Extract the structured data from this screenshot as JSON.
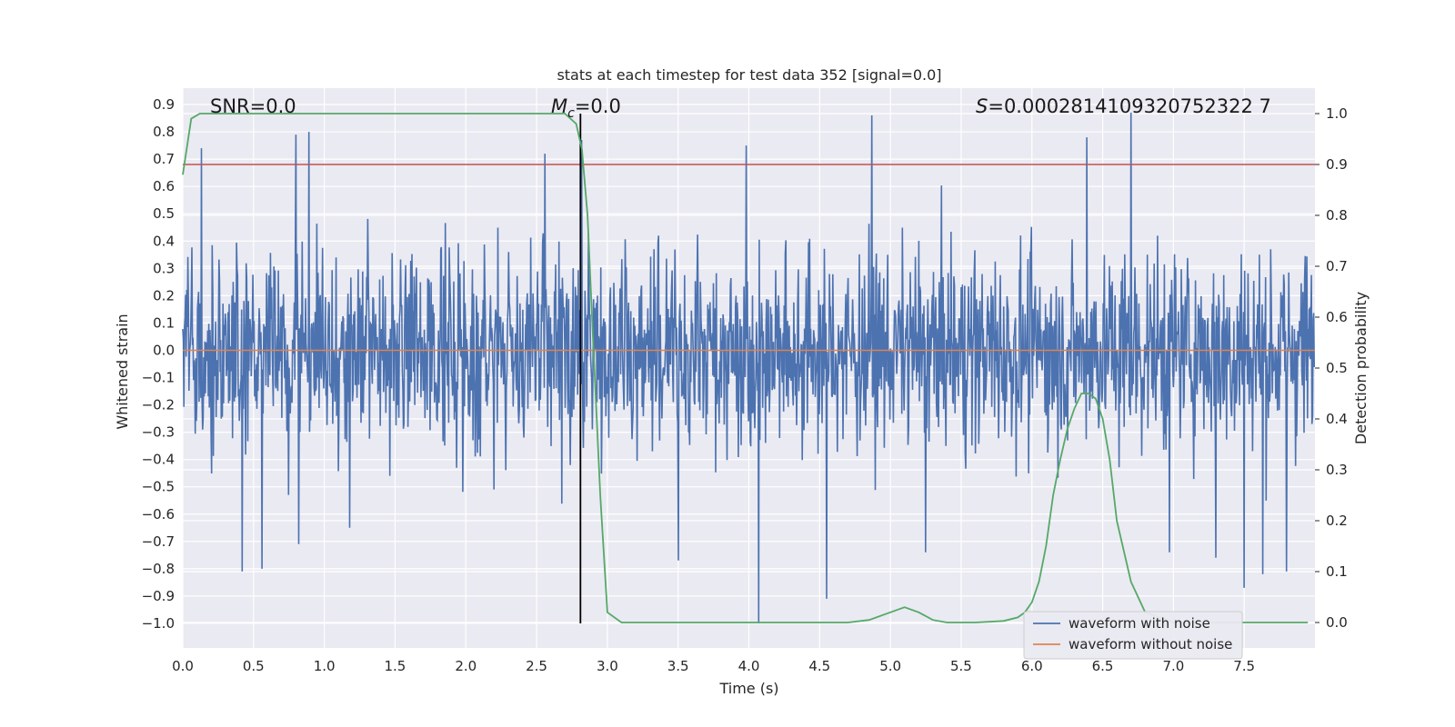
{
  "chart_data": {
    "type": "line",
    "title": "stats at each timestep for test data 352 [signal=0.0]",
    "xlabel": "Time (s)",
    "ylabel_left": "Whitened strain",
    "ylabel_right": "Detection probability",
    "xlim": [
      0.0,
      8.0
    ],
    "ylim_left": [
      -1.09,
      0.96
    ],
    "ylim_right": [
      -0.05,
      1.05
    ],
    "x_ticks": [
      "0.0",
      "0.5",
      "1.0",
      "1.5",
      "2.0",
      "2.5",
      "3.0",
      "3.5",
      "4.0",
      "4.5",
      "5.0",
      "5.5",
      "6.0",
      "6.5",
      "7.0",
      "7.5"
    ],
    "y_ticks_left": [
      "0.9",
      "0.8",
      "0.7",
      "0.6",
      "0.5",
      "0.4",
      "0.3",
      "0.2",
      "0.1",
      "0.0",
      "−0.1",
      "−0.2",
      "−0.3",
      "−0.4",
      "−0.5",
      "−0.6",
      "−0.7",
      "−0.8",
      "−0.9",
      "−1.0"
    ],
    "y_ticks_right": [
      "1.0",
      "0.9",
      "0.8",
      "0.7",
      "0.6",
      "0.5",
      "0.4",
      "0.3",
      "0.2",
      "0.1",
      "0.0"
    ],
    "grid": true,
    "legend_position": "lower-right",
    "annotations": {
      "snr": "SNR=0.0",
      "mc_symbol": "M",
      "mc_sub": "c",
      "mc_value": "=0.0",
      "s_symbol": "S",
      "s_value": "=0.0002814109320752322 7"
    },
    "series": [
      {
        "name": "waveform with noise",
        "color": "#4c72b0",
        "description": "noisy strain, amplitude mostly within ±0.4 with spikes",
        "envelope_typical": 0.42,
        "spikes": [
          [
            0.13,
            0.74
          ],
          [
            0.42,
            -0.81
          ],
          [
            0.56,
            -0.8
          ],
          [
            0.8,
            0.79
          ],
          [
            0.89,
            0.8
          ],
          [
            0.82,
            -0.71
          ],
          [
            1.18,
            -0.65
          ],
          [
            2.56,
            0.72
          ],
          [
            2.82,
            0.77
          ],
          [
            3.5,
            -0.77
          ],
          [
            3.98,
            0.75
          ],
          [
            4.07,
            -1.0
          ],
          [
            4.55,
            -0.91
          ],
          [
            4.87,
            0.86
          ],
          [
            5.25,
            -0.74
          ],
          [
            6.39,
            0.78
          ],
          [
            6.7,
            0.87
          ],
          [
            6.97,
            -0.74
          ],
          [
            7.3,
            -0.76
          ],
          [
            7.5,
            -0.87
          ],
          [
            7.63,
            -0.82
          ],
          [
            7.8,
            -0.81
          ]
        ]
      },
      {
        "name": "waveform without noise",
        "color": "#dd8452",
        "value": 0.0
      },
      {
        "name": "",
        "color": "#55a868",
        "axis": "right",
        "x": [
          0.0,
          0.06,
          0.12,
          0.2,
          0.5,
          1.0,
          1.5,
          2.0,
          2.5,
          2.7,
          2.78,
          2.82,
          2.86,
          2.9,
          2.95,
          3.0,
          3.1,
          3.5,
          4.0,
          4.5,
          4.7,
          4.85,
          5.0,
          5.1,
          5.2,
          5.3,
          5.4,
          5.6,
          5.8,
          5.9,
          5.95,
          6.0,
          6.05,
          6.1,
          6.15,
          6.2,
          6.25,
          6.3,
          6.35,
          6.4,
          6.45,
          6.5,
          6.55,
          6.6,
          6.7,
          6.8,
          7.0,
          7.5,
          7.95
        ],
        "y": [
          0.88,
          0.99,
          1.0,
          1.0,
          1.0,
          1.0,
          1.0,
          1.0,
          1.0,
          1.0,
          0.98,
          0.93,
          0.8,
          0.55,
          0.25,
          0.02,
          0.0,
          0.0,
          0.0,
          0.0,
          0.0,
          0.005,
          0.02,
          0.03,
          0.02,
          0.005,
          0.0,
          0.0,
          0.003,
          0.01,
          0.02,
          0.04,
          0.08,
          0.15,
          0.25,
          0.32,
          0.38,
          0.42,
          0.45,
          0.45,
          0.44,
          0.4,
          0.32,
          0.2,
          0.08,
          0.02,
          0.0,
          0.0,
          0.0
        ]
      }
    ],
    "threshold_line": {
      "value": 0.9,
      "axis": "right",
      "color": "#c44e52"
    },
    "marker_line": {
      "x": 2.81,
      "y_range": [
        -1.0,
        1.0
      ],
      "color": "#000000"
    }
  }
}
